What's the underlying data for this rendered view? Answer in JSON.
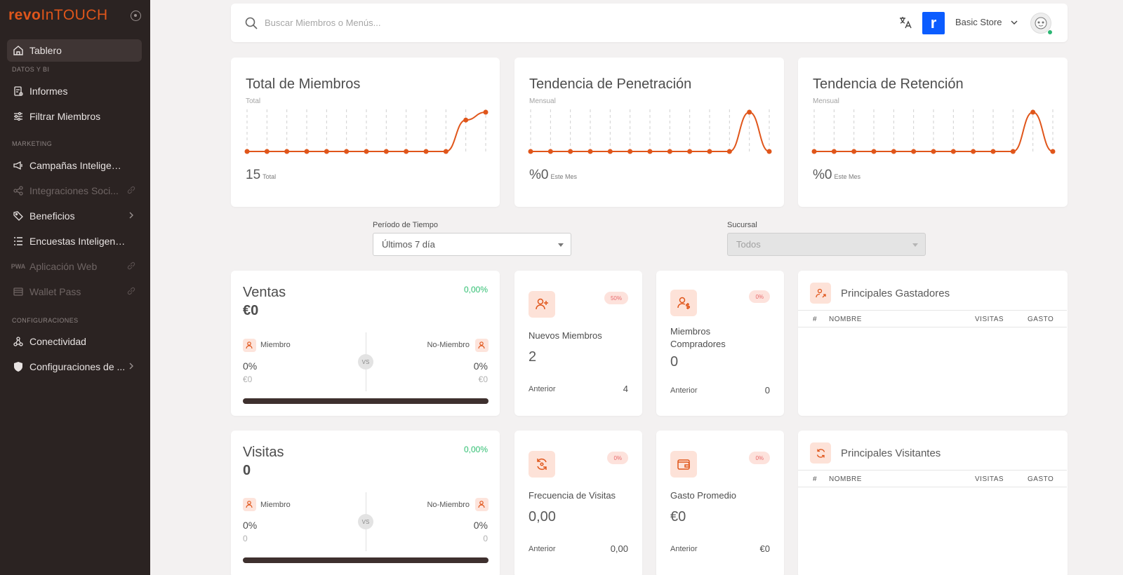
{
  "app": {
    "brand_bold": "revo",
    "brand_rest": "InTOUCH"
  },
  "sidebar": {
    "items": [
      {
        "label": "Tablero"
      },
      {
        "label": "Informes"
      },
      {
        "label": "Filtrar Miembros"
      },
      {
        "label": "Campañas Inteligentes"
      },
      {
        "label": "Integraciones Soci..."
      },
      {
        "label": "Beneficios"
      },
      {
        "label": "Encuestas Inteligentes"
      },
      {
        "label": "Aplicación Web"
      },
      {
        "label": "Wallet Pass"
      },
      {
        "label": "Conectividad"
      },
      {
        "label": "Configuraciones de ..."
      }
    ],
    "sections": [
      "DATOS Y BI",
      "MARKETING",
      "CONFIGURACIONES"
    ]
  },
  "topbar": {
    "search_placeholder": "Buscar Miembros o Menús...",
    "store_logo_letter": "r",
    "store_name": "Basic Store"
  },
  "trends": [
    {
      "title": "Total de Miembros",
      "sub": "Total",
      "value": "15",
      "value_unit": "Total"
    },
    {
      "title": "Tendencia de Penetración",
      "sub": "Mensual",
      "value": "%0",
      "value_unit": "Este Mes"
    },
    {
      "title": "Tendencia de Retención",
      "sub": "Mensual",
      "value": "%0",
      "value_unit": "Este Mes"
    }
  ],
  "chart_data": [
    {
      "type": "line",
      "series": [
        {
          "values": [
            0,
            0,
            0,
            0,
            0,
            0,
            0,
            0,
            0,
            0,
            0,
            8,
            10
          ]
        }
      ],
      "color": "#e0561b"
    },
    {
      "type": "line",
      "series": [
        {
          "values": [
            0,
            0,
            0,
            0,
            0,
            0,
            0,
            0,
            0,
            0,
            0,
            1,
            0
          ]
        }
      ],
      "color": "#e0561b"
    },
    {
      "type": "line",
      "series": [
        {
          "values": [
            0,
            0,
            0,
            0,
            0,
            0,
            0,
            0,
            0,
            0,
            0,
            1,
            0
          ]
        }
      ],
      "color": "#e0561b"
    }
  ],
  "filters": {
    "period_label": "Período de Tiempo",
    "period_value": "Últimos 7 día",
    "branch_label": "Sucursal",
    "branch_value": "Todos"
  },
  "ventas": {
    "title": "Ventas",
    "value": "€0",
    "pct": "0,00%",
    "member_label": "Miembro",
    "nonmember_label": "No-Miembro",
    "member_pct": "0%",
    "nonmember_pct": "0%",
    "member_sub": "€0",
    "nonmember_sub": "€0",
    "vs": "VS"
  },
  "visitas": {
    "title": "Visitas",
    "value": "0",
    "pct": "0,00%",
    "member_label": "Miembro",
    "nonmember_label": "No-Miembro",
    "member_pct": "0%",
    "nonmember_pct": "0%",
    "member_sub": "0",
    "nonmember_sub": "0",
    "vs": "VS"
  },
  "metrics": {
    "nuevos": {
      "pill": "50%",
      "label": "Nuevos Miembros",
      "value": "2",
      "prev_label": "Anterior",
      "prev_value": "4"
    },
    "compradores": {
      "pill": "0%",
      "label": "Miembros Compradores",
      "value": "0",
      "prev_label": "Anterior",
      "prev_value": "0"
    },
    "frecuencia": {
      "pill": "0%",
      "label": "Frecuencia de Visitas",
      "value": "0,00",
      "prev_label": "Anterior",
      "prev_value": "0,00"
    },
    "gasto": {
      "pill": "0%",
      "label": "Gasto Promedio",
      "value": "€0",
      "prev_label": "Anterior",
      "prev_value": "€0"
    }
  },
  "tables": {
    "gastadores": {
      "title": "Principales Gastadores",
      "cols": [
        "#",
        "NOMBRE",
        "VISITAS",
        "GASTO"
      ]
    },
    "visitantes": {
      "title": "Principales Visitantes",
      "cols": [
        "#",
        "NOMBRE",
        "VISITAS",
        "GASTO"
      ]
    }
  },
  "colors": {
    "accent": "#e0561b",
    "sidebar_bg": "#2b2322",
    "green": "#2fbf71",
    "pill_text": "#e8696c"
  }
}
